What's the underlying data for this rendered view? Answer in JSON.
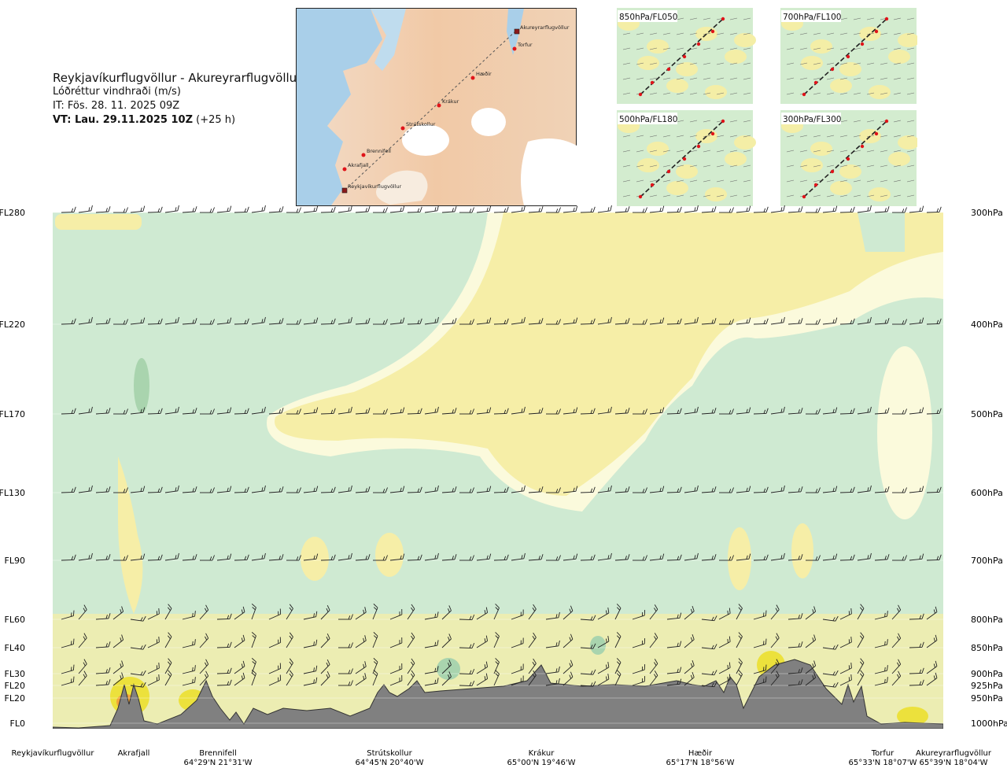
{
  "header": {
    "title": "Reykjavíkurflugvöllur - Akureyrarflugvöllur",
    "subtitle": "Lóðréttur vindhraði (m/s)",
    "init_time": "IT: Fös. 28. 11. 2025 09Z",
    "valid_label": "VT: Lau. 29.11.2025 10Z",
    "valid_offset": "(+25 h)"
  },
  "route_map": {
    "waypoints": [
      {
        "name": "Akureyrarflugvöllur",
        "type": "airport"
      },
      {
        "name": "Torfur",
        "type": "point"
      },
      {
        "name": "Hæðir",
        "type": "point"
      },
      {
        "name": "Krákur",
        "type": "point"
      },
      {
        "name": "Strútskollur",
        "type": "point"
      },
      {
        "name": "Brennifell",
        "type": "point"
      },
      {
        "name": "Akrafjall",
        "type": "point"
      },
      {
        "name": "Reykjavíkurflugvöllur",
        "type": "airport"
      }
    ]
  },
  "thumbnails": [
    "850hPa/FL050",
    "700hPa/FL100",
    "500hPa/FL180",
    "300hPa/FL300"
  ],
  "chart_data": {
    "type": "heatmap",
    "title": "Lóðréttur vindhraði (m/s)",
    "left_axis_flight_levels": [
      "FL280",
      "FL220",
      "FL170",
      "FL130",
      "FL90",
      "FL60",
      "FL40",
      "FL30",
      "FL20",
      "FL20",
      "FL0"
    ],
    "right_axis_pressure_levels": [
      "300hPa",
      "400hPa",
      "500hPa",
      "600hPa",
      "700hPa",
      "800hPa",
      "850hPa",
      "900hPa",
      "925hPa",
      "950hPa",
      "1000hPa"
    ],
    "x_waypoints": [
      {
        "name": "Reykjavíkurflugvöllur",
        "coord": ""
      },
      {
        "name": "Akrafjall",
        "coord": ""
      },
      {
        "name": "Brennifell",
        "coord": "64°29'N 21°31'W"
      },
      {
        "name": "Strútskollur",
        "coord": "64°45'N 20°40'W"
      },
      {
        "name": "Krákur",
        "coord": "65°00'N 19°46'W"
      },
      {
        "name": "Hæðir",
        "coord": "65°17'N 18°56'W"
      },
      {
        "name": "Torfur",
        "coord": "65°33'N 18°07'W"
      },
      {
        "name": "Akureyrarflugvöllur",
        "coord": "65°39'N 18°04'W"
      }
    ],
    "colors": {
      "weak_down": "#cfead2",
      "moderate_down": "#a9d4ae",
      "near_zero": "#fbfadc",
      "weak_up": "#f6eea7",
      "moderate_up": "#ece13c",
      "strong_up": "#f1a33a",
      "terrain": "#808080"
    }
  }
}
